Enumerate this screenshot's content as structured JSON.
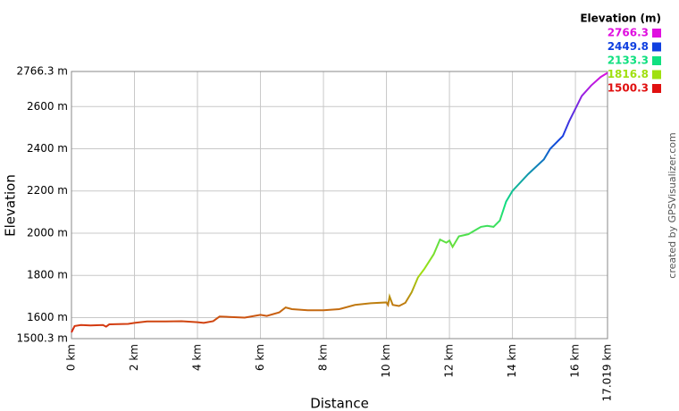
{
  "chart_data": {
    "type": "line",
    "x_label": "Distance",
    "y_label": "Elevation",
    "credit": "created by GPSVisualizer.com",
    "legend_title": "Elevation (m)",
    "legend": [
      {
        "label": "2766.3",
        "color": "#e010e0"
      },
      {
        "label": "2449.8",
        "color": "#1040e0"
      },
      {
        "label": "2133.3",
        "color": "#10e080"
      },
      {
        "label": "1816.8",
        "color": "#a0e010"
      },
      {
        "label": "1500.3",
        "color": "#e01010"
      }
    ],
    "gradient_lim": [
      1500.3,
      2766.3
    ],
    "xlim": [
      0,
      17.019
    ],
    "ylim": [
      1500.3,
      2766.3
    ],
    "xticks": [
      {
        "value": 0,
        "label": "0 km"
      },
      {
        "value": 2,
        "label": "2 km"
      },
      {
        "value": 4,
        "label": "4 km"
      },
      {
        "value": 6,
        "label": "6 km"
      },
      {
        "value": 8,
        "label": "8 km"
      },
      {
        "value": 10,
        "label": "10 km"
      },
      {
        "value": 12,
        "label": "12 km"
      },
      {
        "value": 14,
        "label": "14 km"
      },
      {
        "value": 16,
        "label": "16 km"
      },
      {
        "value": 17.019,
        "label": "17.019 km"
      }
    ],
    "yticks": [
      {
        "value": 1500.3,
        "label": "1500.3 m"
      },
      {
        "value": 1600,
        "label": "1600 m"
      },
      {
        "value": 1800,
        "label": "1800 m"
      },
      {
        "value": 2000,
        "label": "2000 m"
      },
      {
        "value": 2200,
        "label": "2200 m"
      },
      {
        "value": 2400,
        "label": "2400 m"
      },
      {
        "value": 2600,
        "label": "2600 m"
      },
      {
        "value": 2766.3,
        "label": "2766.3 m"
      }
    ],
    "grid": true,
    "x": [
      0,
      0.1,
      0.3,
      0.6,
      1.0,
      1.1,
      1.2,
      1.8,
      2.0,
      2.4,
      3.0,
      3.5,
      4.0,
      4.2,
      4.5,
      4.7,
      5.0,
      5.5,
      6.0,
      6.2,
      6.6,
      6.8,
      7.0,
      7.5,
      8.0,
      8.5,
      9.0,
      9.5,
      10.0,
      10.05,
      10.1,
      10.2,
      10.4,
      10.6,
      10.8,
      11.0,
      11.2,
      11.5,
      11.7,
      11.9,
      12.0,
      12.1,
      12.3,
      12.6,
      13.0,
      13.2,
      13.4,
      13.6,
      13.8,
      14.0,
      14.5,
      15.0,
      15.2,
      15.6,
      15.8,
      16.0,
      16.2,
      16.5,
      16.8,
      17.019
    ],
    "values": [
      1530,
      1560,
      1565,
      1563,
      1565,
      1557,
      1568,
      1570,
      1575,
      1582,
      1582,
      1583,
      1578,
      1575,
      1583,
      1605,
      1603,
      1600,
      1613,
      1608,
      1625,
      1648,
      1640,
      1635,
      1635,
      1640,
      1660,
      1668,
      1672,
      1660,
      1700,
      1660,
      1655,
      1670,
      1720,
      1790,
      1830,
      1900,
      1970,
      1955,
      1965,
      1935,
      1985,
      1995,
      2030,
      2035,
      2030,
      2060,
      2150,
      2200,
      2280,
      2350,
      2400,
      2460,
      2530,
      2590,
      2650,
      2700,
      2740,
      2760
    ]
  }
}
